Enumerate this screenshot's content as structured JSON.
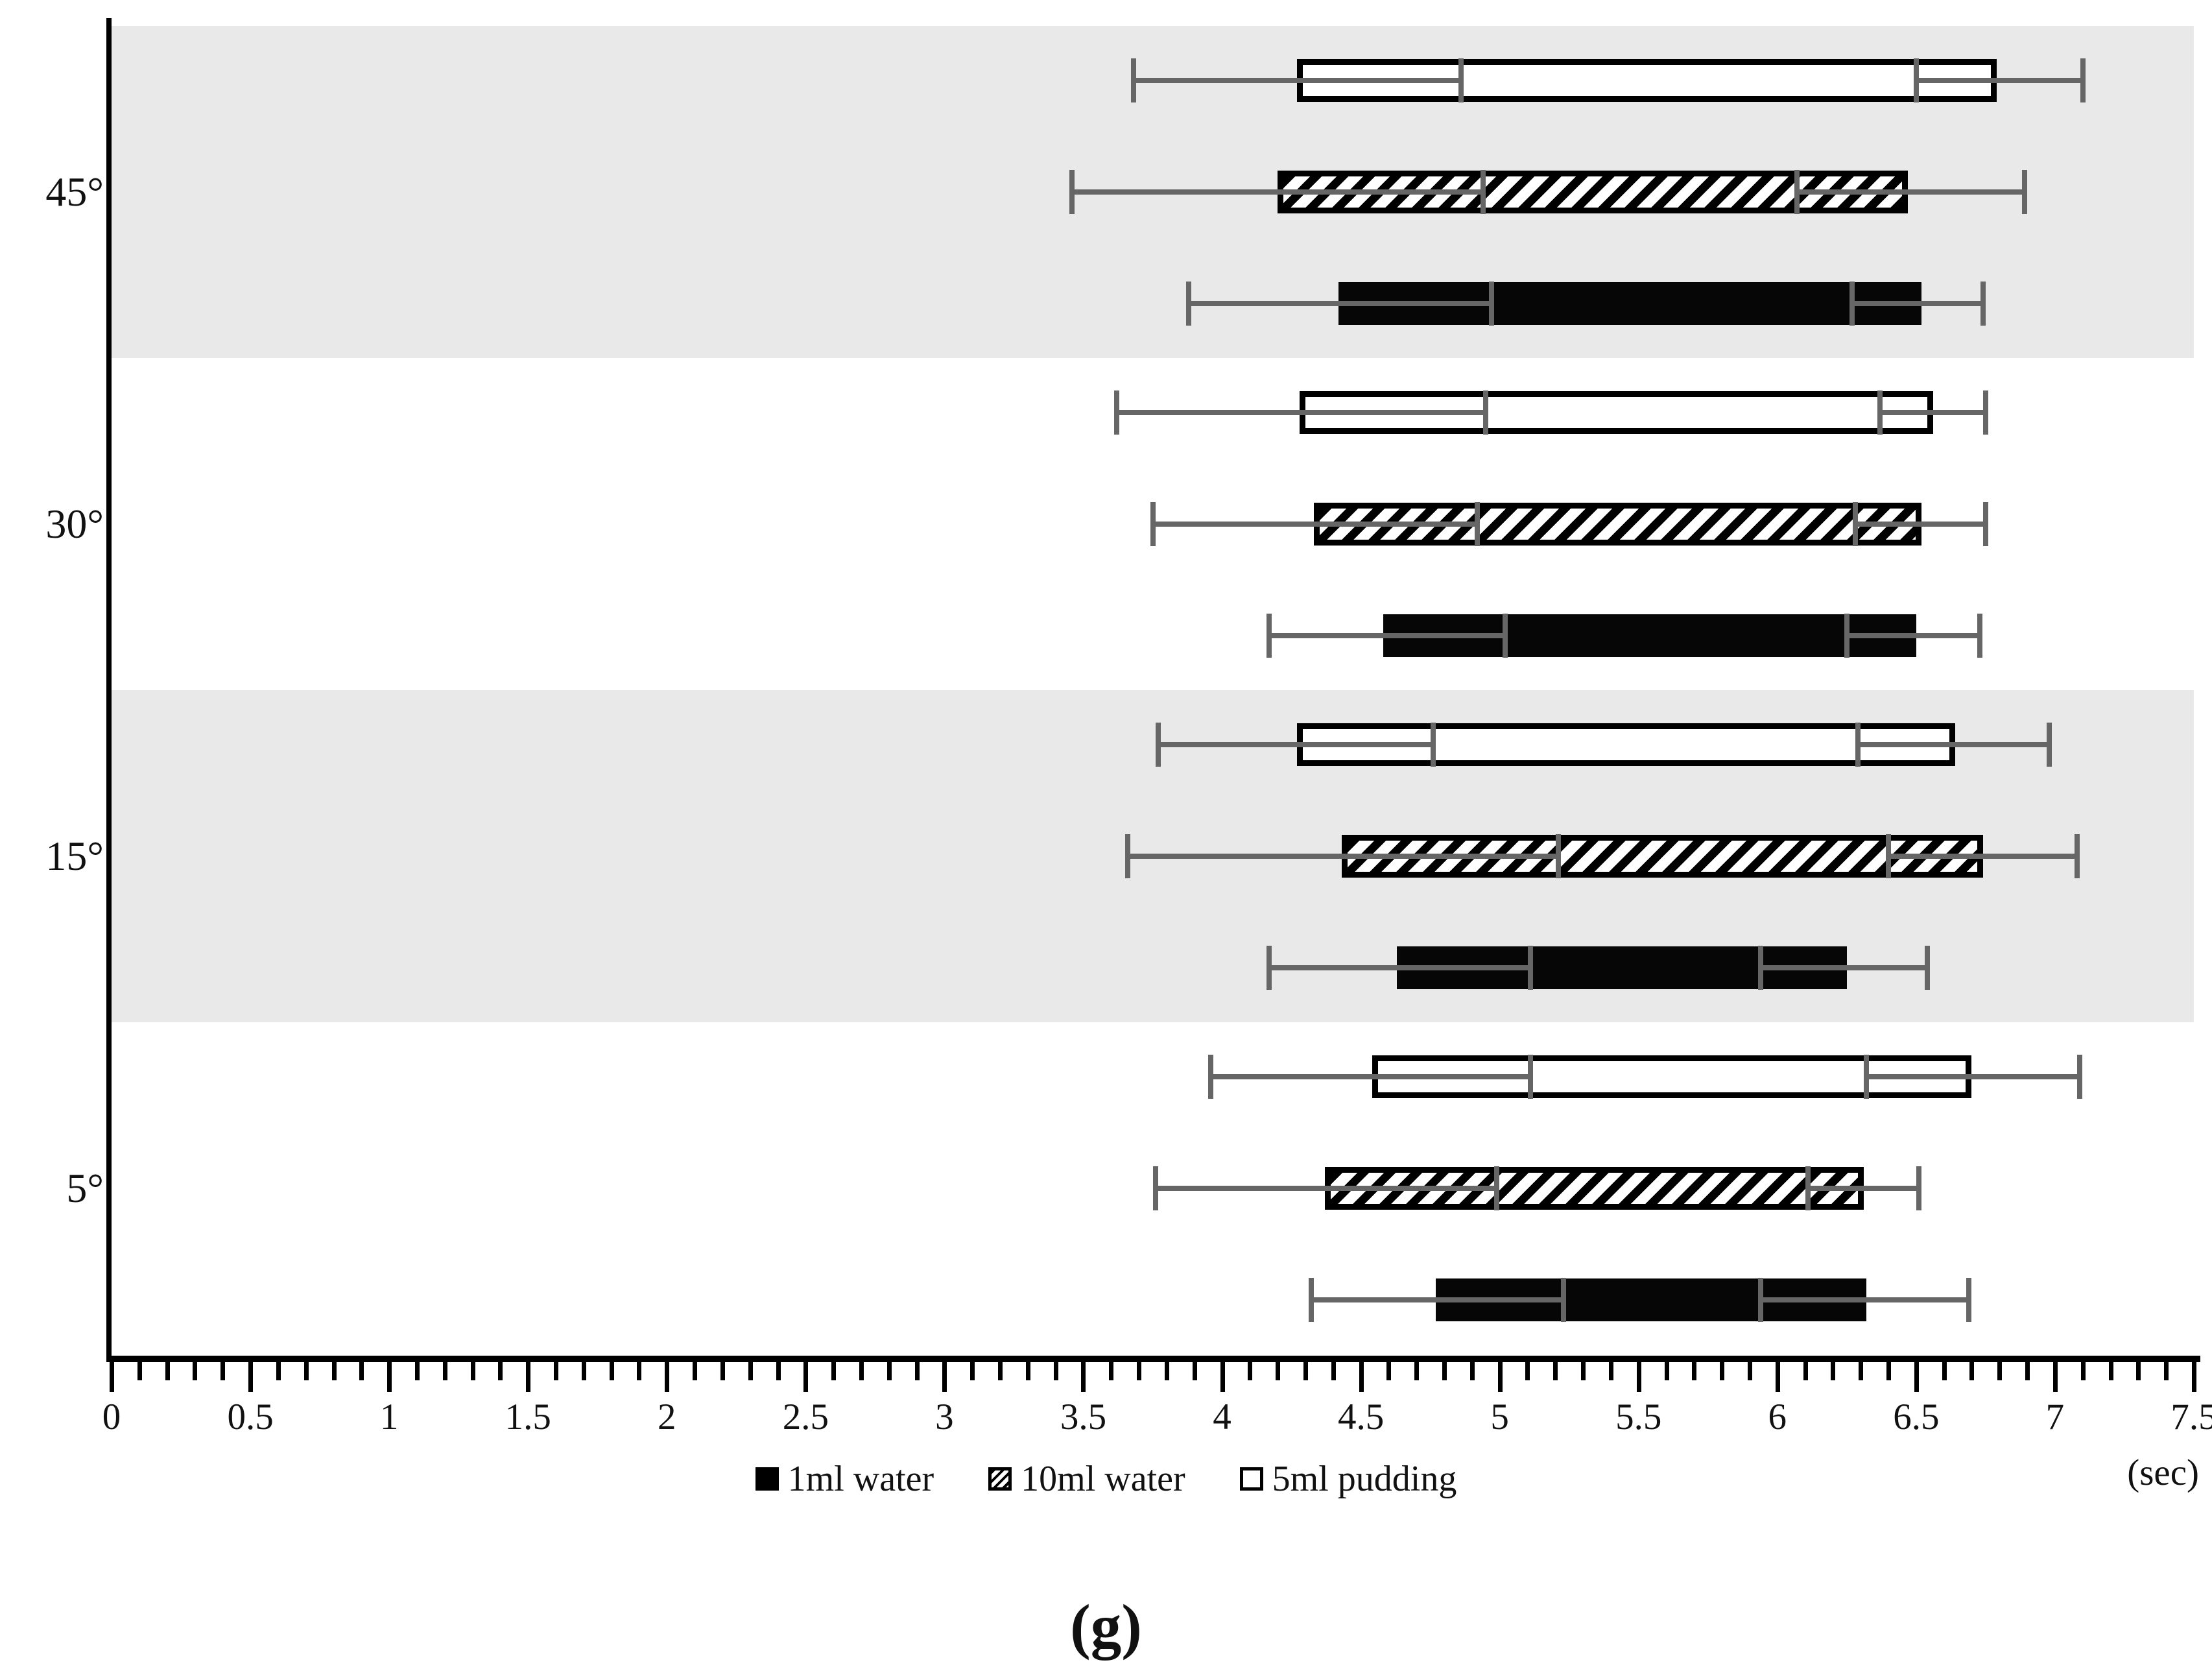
{
  "figure": {
    "caption": "(g)",
    "axis_unit_label": "(sec)"
  },
  "legend": [
    {
      "label": "1ml water",
      "swatch": "solid-black-square-icon"
    },
    {
      "label": "10ml water",
      "swatch": "diagonal-hatch-square-icon"
    },
    {
      "label": "5ml pudding",
      "swatch": "white-square-icon"
    }
  ],
  "colors": {
    "shaded_band": "#e9e9e9",
    "error_bar": "#666666",
    "bar_black": "#060606",
    "bar_outline": "#000000"
  },
  "chart_data": {
    "type": "bar",
    "subtype": "horizontal-range-bars-with-error-bars",
    "title": "",
    "xlabel": "(sec)",
    "ylabel": "",
    "xlim": [
      0,
      7.5
    ],
    "x_major_tick": 0.5,
    "x_minor_tick": 0.1,
    "x_tick_labels": [
      "0",
      "0.5",
      "1",
      "1.5",
      "2",
      "2.5",
      "3",
      "3.5",
      "4",
      "4.5",
      "5",
      "5.5",
      "6",
      "6.5",
      "7",
      "7.5"
    ],
    "grid": false,
    "legend_position": "bottom-center",
    "categories": [
      "45°",
      "30°",
      "15°",
      "5°"
    ],
    "series_names": [
      "5ml pudding",
      "10ml water",
      "1ml water"
    ],
    "groups": [
      {
        "label": "45°",
        "shaded": true,
        "bars": [
          {
            "series": "5ml pudding",
            "style": "white",
            "start": 4.27,
            "end": 6.79,
            "err_start": [
              3.68,
              4.86
            ],
            "err_end": [
              6.5,
              7.1
            ]
          },
          {
            "series": "10ml water",
            "style": "hatch",
            "start": 4.2,
            "end": 6.47,
            "err_start": [
              3.46,
              4.94
            ],
            "err_end": [
              6.07,
              6.89
            ]
          },
          {
            "series": "1ml water",
            "style": "black",
            "start": 4.42,
            "end": 6.52,
            "err_start": [
              3.88,
              4.97
            ],
            "err_end": [
              6.27,
              6.74
            ]
          }
        ]
      },
      {
        "label": "30°",
        "shaded": false,
        "bars": [
          {
            "series": "5ml pudding",
            "style": "white",
            "start": 4.28,
            "end": 6.56,
            "err_start": [
              3.62,
              4.95
            ],
            "err_end": [
              6.37,
              6.75
            ]
          },
          {
            "series": "10ml water",
            "style": "hatch",
            "start": 4.33,
            "end": 6.52,
            "err_start": [
              3.75,
              4.92
            ],
            "err_end": [
              6.28,
              6.75
            ]
          },
          {
            "series": "1ml water",
            "style": "black",
            "start": 4.58,
            "end": 6.5,
            "err_start": [
              4.17,
              5.02
            ],
            "err_end": [
              6.25,
              6.73
            ]
          }
        ]
      },
      {
        "label": "15°",
        "shaded": true,
        "bars": [
          {
            "series": "5ml pudding",
            "style": "white",
            "start": 4.27,
            "end": 6.64,
            "err_start": [
              3.77,
              4.76
            ],
            "err_end": [
              6.29,
              6.98
            ]
          },
          {
            "series": "10ml water",
            "style": "hatch",
            "start": 4.43,
            "end": 6.74,
            "err_start": [
              3.66,
              5.21
            ],
            "err_end": [
              6.4,
              7.08
            ]
          },
          {
            "series": "1ml water",
            "style": "black",
            "start": 4.63,
            "end": 6.25,
            "err_start": [
              4.17,
              5.11
            ],
            "err_end": [
              5.94,
              6.54
            ]
          }
        ]
      },
      {
        "label": "5°",
        "shaded": false,
        "bars": [
          {
            "series": "5ml pudding",
            "style": "white",
            "start": 4.54,
            "end": 6.7,
            "err_start": [
              3.96,
              5.11
            ],
            "err_end": [
              6.32,
              7.09
            ]
          },
          {
            "series": "10ml water",
            "style": "hatch",
            "start": 4.37,
            "end": 6.31,
            "err_start": [
              3.76,
              4.99
            ],
            "err_end": [
              6.11,
              6.51
            ]
          },
          {
            "series": "1ml water",
            "style": "black",
            "start": 4.77,
            "end": 6.32,
            "err_start": [
              4.32,
              5.23
            ],
            "err_end": [
              5.94,
              6.69
            ]
          }
        ]
      }
    ]
  }
}
